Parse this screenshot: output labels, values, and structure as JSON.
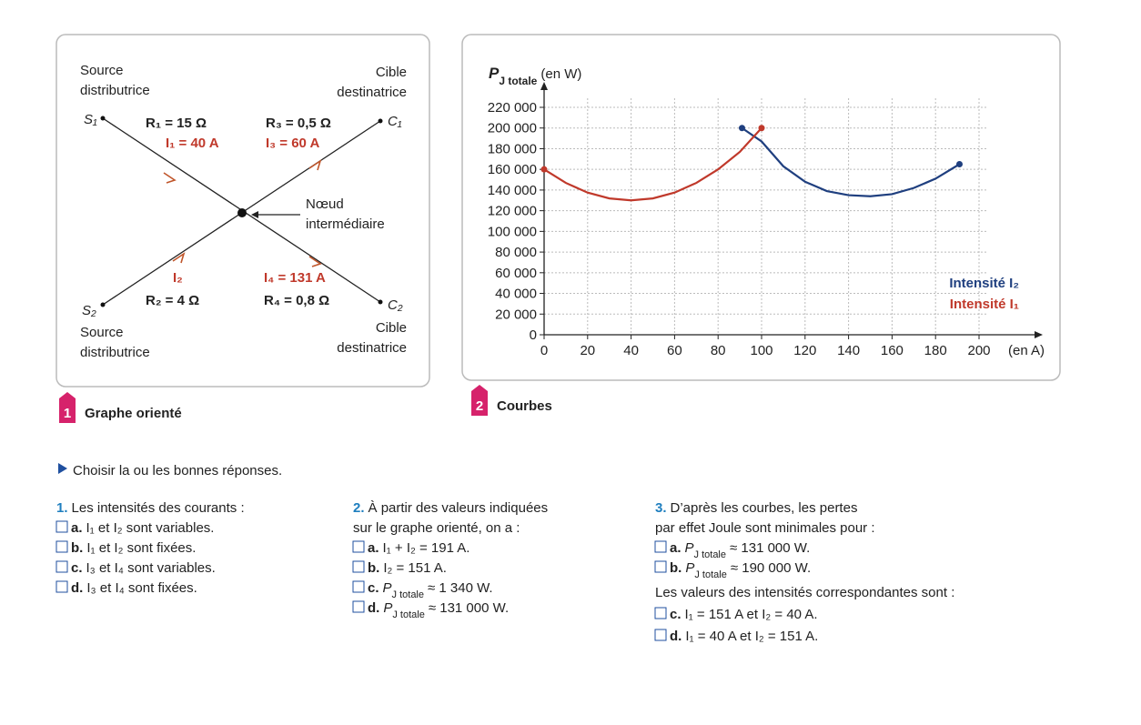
{
  "figure1": {
    "number": "1",
    "caption": "Graphe orienté",
    "nodes": [
      {
        "symbol": "S₁",
        "label_lines": [
          "Source",
          "distributrice"
        ]
      },
      {
        "symbol": "C₁",
        "label_lines": [
          "Cible",
          "destinatrice"
        ]
      },
      {
        "symbol": "S₂",
        "label_lines": [
          "Source",
          "distributrice"
        ]
      },
      {
        "symbol": "C₂",
        "label_lines": [
          "Cible",
          "destinatrice"
        ]
      }
    ],
    "edges": [
      {
        "resistance": "R₁ = 15 Ω",
        "current": "I₁ = 40 A"
      },
      {
        "resistance": "R₃ = 0,5 Ω",
        "current": "I₃ = 60 A"
      },
      {
        "resistance": "R₂ = 4 Ω",
        "current": "I₂"
      },
      {
        "resistance": "R₄ = 0,8 Ω",
        "current": "I₄ = 131 A"
      }
    ],
    "center_label_lines": [
      "Nœud",
      "intermédiaire"
    ]
  },
  "figure2": {
    "number": "2",
    "caption": "Courbes"
  },
  "chart_data": {
    "type": "line",
    "y_label": {
      "symbol": "P",
      "subscript": "J totale",
      "unit": "(en W)"
    },
    "x_label": "(en A)",
    "xlim": [
      0,
      200
    ],
    "xticks": [
      0,
      20,
      40,
      60,
      80,
      100,
      120,
      140,
      160,
      180,
      200
    ],
    "ylim": [
      0,
      220000
    ],
    "yticks": [
      0,
      {
        "value": 20000,
        "label": "20 000"
      },
      {
        "value": 40000,
        "label": "40 000"
      },
      {
        "value": 60000,
        "label": "60 000"
      },
      {
        "value": 80000,
        "label": "80 000"
      },
      {
        "value": 100000,
        "label": "100 000"
      },
      {
        "value": 120000,
        "label": "120 000"
      },
      {
        "value": 140000,
        "label": "140 000"
      },
      {
        "value": 160000,
        "label": "160 000"
      },
      {
        "value": 180000,
        "label": "180 000"
      },
      {
        "value": 200000,
        "label": "200 000"
      },
      {
        "value": 220000,
        "label": "220 000"
      }
    ],
    "grid": true,
    "series": [
      {
        "name": "Intensité I₂",
        "color": "#1f3f7f",
        "x": [
          91,
          100,
          110,
          120,
          130,
          140,
          150,
          160,
          170,
          180,
          191
        ],
        "values": [
          200000,
          187000,
          163000,
          148000,
          139000,
          135000,
          134000,
          136000,
          142000,
          151000,
          165000
        ]
      },
      {
        "name": "Intensité I₁",
        "color": "#c0392b",
        "x": [
          0,
          10,
          20,
          30,
          40,
          50,
          60,
          70,
          80,
          90,
          100
        ],
        "values": [
          160000,
          146900,
          137500,
          131900,
          130000,
          131900,
          137500,
          146900,
          160000,
          176900,
          200000
        ]
      }
    ]
  },
  "instruction": "Choisir la ou les bonnes réponses.",
  "questions": [
    {
      "number": "1.",
      "lines": [
        "Les intensités des courants :"
      ],
      "answers": [
        {
          "letter": "a.",
          "text": "I₁ et I₂ sont variables."
        },
        {
          "letter": "b.",
          "text": "I₁ et I₂ sont fixées."
        },
        {
          "letter": "c.",
          "text": "I₃ et I₄ sont variables."
        },
        {
          "letter": "d.",
          "text": "I₃ et I₄ sont fixées."
        }
      ]
    },
    {
      "number": "2.",
      "lines": [
        "À partir des valeurs indiquées",
        "sur le graphe orienté, on a :"
      ],
      "answers": [
        {
          "letter": "a.",
          "text": "I₁ + I₂ = 191 A."
        },
        {
          "letter": "b.",
          "text": "I₂ = 151 A."
        },
        {
          "letter": "c.",
          "symbol": "P",
          "sub": "J totale",
          "text": "≈ 1 340 W."
        },
        {
          "letter": "d.",
          "symbol": "P",
          "sub": "J totale",
          "text": "≈ 131 000 W."
        }
      ]
    },
    {
      "number": "3.",
      "lines": [
        "D’après les courbes, les pertes",
        "par effet Joule sont minimales pour :"
      ],
      "answers": [
        {
          "letter": "a.",
          "symbol": "P",
          "sub": "J totale",
          "text": "≈ 131 000 W."
        },
        {
          "letter": "b.",
          "symbol": "P",
          "sub": "J totale",
          "text": "≈ 190 000 W."
        }
      ],
      "follow_up": "Les valeurs des intensités correspondantes sont :",
      "more_answers": [
        {
          "letter": "c.",
          "text": "I₁ = 151 A et I₂ = 40 A."
        },
        {
          "letter": "d.",
          "text": "I₁ = 40 A et I₂ = 151 A."
        }
      ]
    }
  ]
}
